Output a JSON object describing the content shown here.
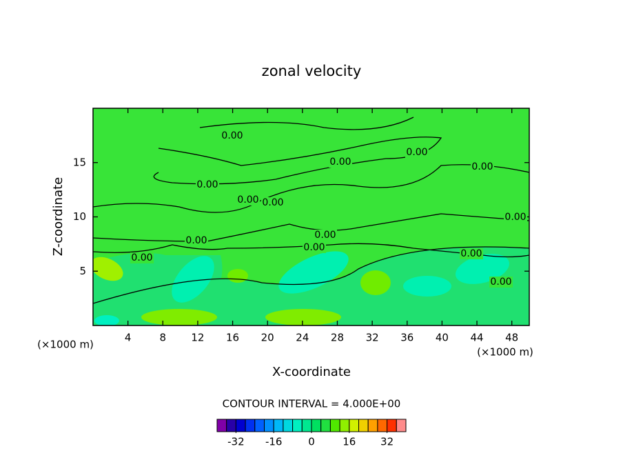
{
  "chart_data": {
    "type": "contour",
    "title": "zonal velocity",
    "x_label": "X-coordinate",
    "y_label": "Z-coordinate",
    "x_unit": "(×1000 m)",
    "y_unit": "(×1000 m)",
    "xlim": [
      0,
      50
    ],
    "xticks": [
      4,
      8,
      12,
      16,
      20,
      24,
      28,
      32,
      36,
      40,
      44,
      48
    ],
    "ylim": [
      0,
      20
    ],
    "yticks": [
      5,
      10,
      15
    ],
    "contour_labels": [
      "0.00",
      "0.00",
      "0.00",
      "0.00",
      "0.00",
      "0.00",
      "0.00",
      "0.00",
      "0.00",
      "0.00",
      "0.00",
      "0.00",
      "0.00",
      "0.00"
    ],
    "contour_interval": "CONTOUR INTERVAL = 4.000E+00",
    "colorbar_lim": [
      -40,
      40
    ],
    "colorbar_ticks": [
      -32,
      -16,
      0,
      16,
      32
    ],
    "colorbar_colors": [
      "#8000a8",
      "#2800a8",
      "#0000d0",
      "#0030f0",
      "#0060ff",
      "#0090ff",
      "#00b8f8",
      "#00d8e0",
      "#00f0c0",
      "#00e890",
      "#00e060",
      "#20e040",
      "#50e800",
      "#90f000",
      "#d0f000",
      "#f0d000",
      "#ffa000",
      "#ff6800",
      "#ff3000",
      "#ff8c8c"
    ]
  }
}
